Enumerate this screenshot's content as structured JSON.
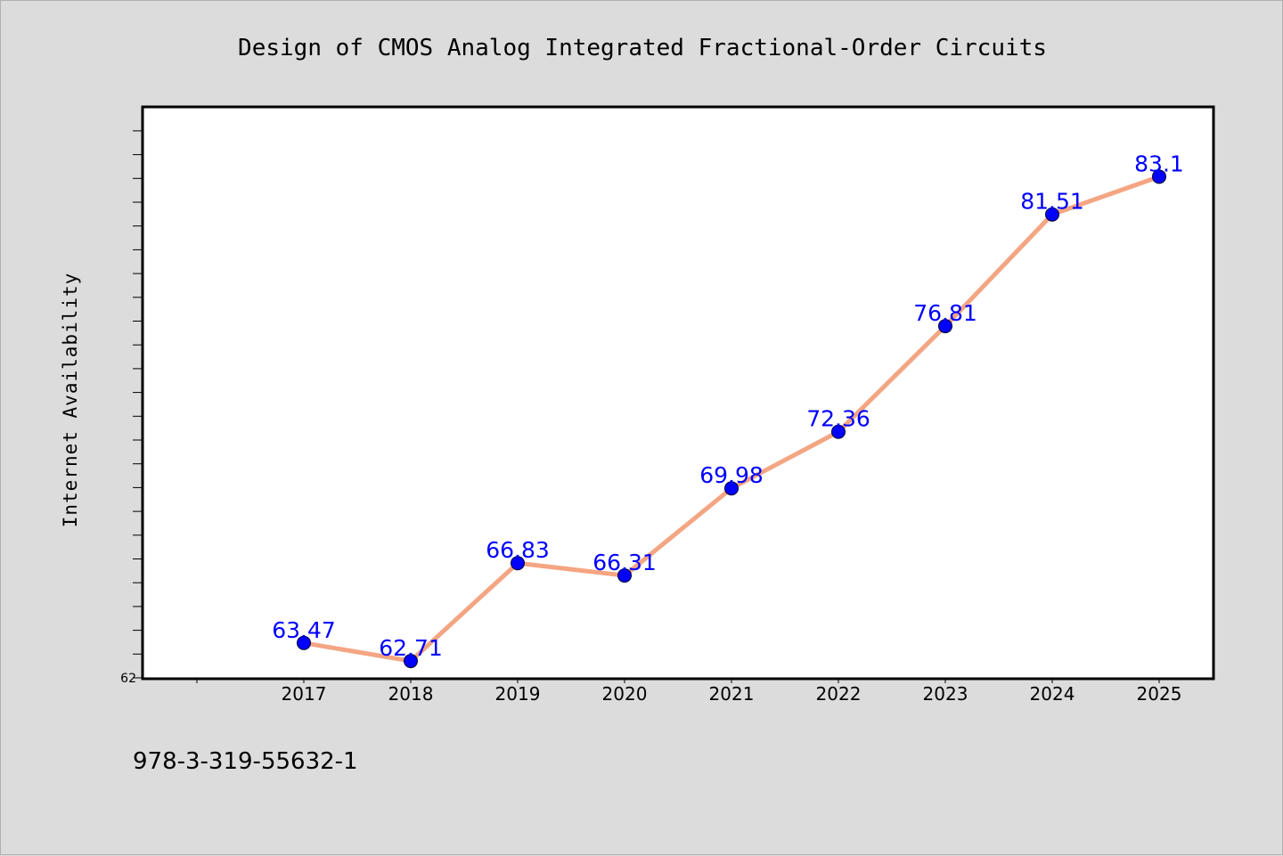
{
  "chart_data": {
    "type": "line",
    "title": "Design of CMOS Analog Integrated Fractional-Order Circuits",
    "ylabel": "Internet Availability",
    "xlabel": "",
    "categories": [
      "2017",
      "2018",
      "2019",
      "2020",
      "2021",
      "2022",
      "2023",
      "2024",
      "2025"
    ],
    "series": [
      {
        "values": [
          63.47,
          62.71,
          66.83,
          66.31,
          69.98,
          72.36,
          76.81,
          81.51,
          83.1
        ]
      }
    ],
    "data_labels": [
      "63.47",
      "62.71",
      "66.83",
      "66.31",
      "69.98",
      "72.36",
      "76.81",
      "81.51",
      "83.1"
    ],
    "ylim": [
      62,
      86
    ],
    "y_tick_labels": [
      "62"
    ],
    "grid": false,
    "legend": "none",
    "colors": {
      "line": "#f4a582",
      "marker": "#0000ff",
      "label": "#0000ff",
      "background": "#dcdcdc",
      "plot_background": "#ffffff"
    }
  },
  "footer": {
    "isbn": "978-3-319-55632-1"
  }
}
